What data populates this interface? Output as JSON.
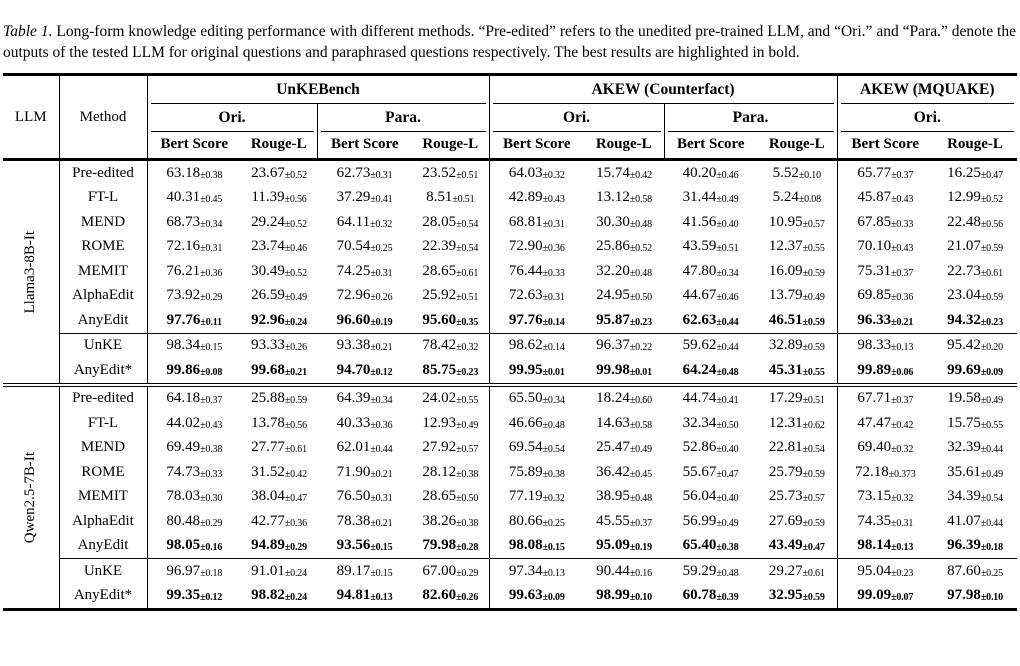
{
  "caption": {
    "label": "Table 1.",
    "text": " Long-form knowledge editing performance with different methods. “Pre-edited” refers to the unedited pre-trained LLM, and “Ori.” and “Para.” denote the outputs of the tested LLM for original questions and paraphrased questions respectively. The best results are highlighted in bold."
  },
  "table": {
    "corner": {
      "llm": "LLM",
      "method": "Method"
    },
    "groups": [
      {
        "label": "UnKEBench",
        "subgroups": [
          "Ori.",
          "Para."
        ]
      },
      {
        "label": "AKEW (Counterfact)",
        "subgroups": [
          "Ori.",
          "Para."
        ]
      },
      {
        "label": "AKEW (MQUAKE)",
        "subgroups": [
          "Ori."
        ]
      }
    ],
    "metrics": [
      "Bert Score",
      "Rouge-L"
    ],
    "sections": [
      {
        "llm": "Llama3-8B-It",
        "rows": [
          {
            "method": "Pre-edited",
            "bold": false,
            "rule_above": false,
            "values": [
              "63.18±0.38",
              "23.67±0.52",
              "62.73±0.31",
              "23.52±0.51",
              "64.03±0.32",
              "15.74±0.42",
              "40.20±0.46",
              "5.52±0.10",
              "65.77±0.37",
              "16.25±0.47"
            ]
          },
          {
            "method": "FT-L",
            "bold": false,
            "rule_above": false,
            "values": [
              "40.31±0.45",
              "11.39±0.56",
              "37.29±0.41",
              "8.51±0.51",
              "42.89±0.43",
              "13.12±0.58",
              "31.44±0.49",
              "5.24±0.08",
              "45.87±0.43",
              "12.99±0.52"
            ]
          },
          {
            "method": "MEND",
            "bold": false,
            "rule_above": false,
            "values": [
              "68.73±0.34",
              "29.24±0.52",
              "64.11±0.32",
              "28.05±0.54",
              "68.81±0.31",
              "30.30±0.48",
              "41.56±0.40",
              "10.95±0.57",
              "67.85±0.33",
              "22.48±0.56"
            ]
          },
          {
            "method": "ROME",
            "bold": false,
            "rule_above": false,
            "values": [
              "72.16±0.31",
              "23.74±0.46",
              "70.54±0.25",
              "22.39±0.54",
              "72.90±0.36",
              "25.86±0.52",
              "43.59±0.51",
              "12.37±0.55",
              "70.10±0.43",
              "21.07±0.59"
            ]
          },
          {
            "method": "MEMIT",
            "bold": false,
            "rule_above": false,
            "values": [
              "76.21±0.36",
              "30.49±0.52",
              "74.25±0.31",
              "28.65±0.61",
              "76.44±0.33",
              "32.20±0.48",
              "47.80±0.34",
              "16.09±0.59",
              "75.31±0.37",
              "22.73±0.61"
            ]
          },
          {
            "method": "AlphaEdit",
            "bold": false,
            "rule_above": false,
            "values": [
              "73.92±0.29",
              "26.59±0.49",
              "72.96±0.26",
              "25.92±0.51",
              "72.63±0.31",
              "24.95±0.50",
              "44.67±0.46",
              "13.79±0.49",
              "69.85±0.36",
              "23.04±0.59"
            ]
          },
          {
            "method": "AnyEdit",
            "bold": true,
            "rule_above": false,
            "values": [
              "97.76±0.11",
              "92.96±0.24",
              "96.60±0.19",
              "95.60±0.35",
              "97.76±0.14",
              "95.87±0.23",
              "62.63±0.44",
              "46.51±0.59",
              "96.33±0.21",
              "94.32±0.23"
            ]
          },
          {
            "method": "UnKE",
            "bold": false,
            "rule_above": true,
            "values": [
              "98.34±0.15",
              "93.33±0.26",
              "93.38±0.21",
              "78.42±0.32",
              "98.62±0.14",
              "96.37±0.22",
              "59.62±0.44",
              "32.89±0.59",
              "98.33±0.13",
              "95.42±0.20"
            ]
          },
          {
            "method": "AnyEdit*",
            "bold": true,
            "rule_above": false,
            "values": [
              "99.86±0.08",
              "99.68±0.21",
              "94.70±0.12",
              "85.75±0.23",
              "99.95±0.01",
              "99.98±0.01",
              "64.24±0.48",
              "45.31±0.55",
              "99.89±0.06",
              "99.69±0.09"
            ]
          }
        ]
      },
      {
        "llm": "Qwen2.5-7B-It",
        "rows": [
          {
            "method": "Pre-edited",
            "bold": false,
            "rule_above": false,
            "values": [
              "64.18±0.37",
              "25.88±0.59",
              "64.39±0.34",
              "24.02±0.55",
              "65.50±0.34",
              "18.24±0.60",
              "44.74±0.41",
              "17.29±0.51",
              "67.71±0.37",
              "19.58±0.49"
            ]
          },
          {
            "method": "FT-L",
            "bold": false,
            "rule_above": false,
            "values": [
              "44.02±0.43",
              "13.78±0.56",
              "40.33±0.36",
              "12.93±0.49",
              "46.66±0.48",
              "14.63±0.58",
              "32.34±0.50",
              "12.31±0.62",
              "47.47±0.42",
              "15.75±0.55"
            ]
          },
          {
            "method": "MEND",
            "bold": false,
            "rule_above": false,
            "values": [
              "69.49±0.38",
              "27.77±0.61",
              "62.01±0.44",
              "27.92±0.57",
              "69.54±0.54",
              "25.47±0.49",
              "52.86±0.40",
              "22.81±0.54",
              "69.40±0.32",
              "32.39±0.44"
            ]
          },
          {
            "method": "ROME",
            "bold": false,
            "rule_above": false,
            "values": [
              "74.73±0.33",
              "31.52±0.42",
              "71.90±0.21",
              "28.12±0.38",
              "75.89±0.38",
              "36.42±0.45",
              "55.67±0.47",
              "25.79±0.59",
              "72.18±0.373",
              "35.61±0.49"
            ]
          },
          {
            "method": "MEMIT",
            "bold": false,
            "rule_above": false,
            "values": [
              "78.03±0.30",
              "38.04±0.47",
              "76.50±0.31",
              "28.65±0.50",
              "77.19±0.32",
              "38.95±0.48",
              "56.04±0.40",
              "25.73±0.57",
              "73.15±0.32",
              "34.39±0.54"
            ]
          },
          {
            "method": "AlphaEdit",
            "bold": false,
            "rule_above": false,
            "values": [
              "80.48±0.29",
              "42.77±0.36",
              "78.38±0.21",
              "38.26±0.38",
              "80.66±0.25",
              "45.55±0.37",
              "56.99±0.49",
              "27.69±0.59",
              "74.35±0.31",
              "41.07±0.44"
            ]
          },
          {
            "method": "AnyEdit",
            "bold": true,
            "rule_above": false,
            "values": [
              "98.05±0.16",
              "94.89±0.29",
              "93.56±0.15",
              "79.98±0.28",
              "98.08±0.15",
              "95.09±0.19",
              "65.40±0.38",
              "43.49±0.47",
              "98.14±0.13",
              "96.39±0.18"
            ]
          },
          {
            "method": "UnKE",
            "bold": false,
            "rule_above": true,
            "values": [
              "96.97±0.18",
              "91.01±0.24",
              "89.17±0.15",
              "67.00±0.29",
              "97.34±0.13",
              "90.44±0.16",
              "59.29±0.48",
              "29.27±0.61",
              "95.04±0.23",
              "87.60±0.25"
            ]
          },
          {
            "method": "AnyEdit*",
            "bold": true,
            "rule_above": false,
            "values": [
              "99.35±0.12",
              "98.82±0.24",
              "94.81±0.13",
              "82.60±0.26",
              "99.63±0.09",
              "98.99±0.10",
              "60.78±0.39",
              "32.95±0.59",
              "99.09±0.07",
              "97.98±0.10"
            ]
          }
        ]
      }
    ]
  }
}
